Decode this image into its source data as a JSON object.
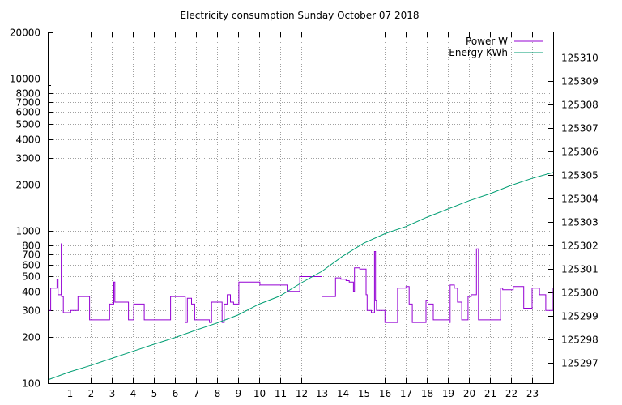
{
  "chart_data": {
    "type": "line",
    "title": "Electricity consumption Sunday October 07 2018",
    "xlabel": "",
    "ylabel": "",
    "y2label": "",
    "xlim": [
      0,
      24
    ],
    "ylim": [
      100,
      20000
    ],
    "y_scale": "log",
    "y2lim": [
      125296.15,
      125311.05
    ],
    "grid": true,
    "legend_position": "top-right",
    "x_ticks": [
      1,
      2,
      3,
      4,
      5,
      6,
      7,
      8,
      9,
      10,
      11,
      12,
      13,
      14,
      15,
      16,
      17,
      18,
      19,
      20,
      21,
      22,
      23
    ],
    "y_ticks": [
      100,
      200,
      300,
      400,
      500,
      600,
      700,
      800,
      1000,
      2000,
      3000,
      4000,
      5000,
      6000,
      7000,
      8000,
      10000,
      20000
    ],
    "y_tick_labels": [
      "100",
      "200",
      "300",
      "400",
      "500",
      "600",
      "700",
      "800",
      "1000",
      "2000",
      "3000",
      "4000",
      "5000",
      "6000",
      "7000",
      "8000",
      "10000",
      "20000"
    ],
    "y2_ticks": [
      125297,
      125298,
      125299,
      125300,
      125301,
      125302,
      125303,
      125304,
      125305,
      125306,
      125307,
      125308,
      125309,
      125310
    ],
    "series": [
      {
        "name": "Power W",
        "axis": "y",
        "color": "#9400d3",
        "step": true,
        "x": [
          0,
          0.1,
          0.12,
          0.4,
          0.45,
          0.6,
          0.62,
          0.65,
          0.7,
          0.75,
          0.85,
          0.9,
          1.05,
          1.4,
          1.45,
          1.95,
          2.0,
          2.85,
          2.9,
          3.1,
          3.15,
          3.7,
          3.8,
          4.05,
          4.45,
          4.55,
          5.35,
          5.45,
          5.6,
          5.8,
          6.5,
          6.6,
          6.75,
          6.8,
          6.95,
          7.0,
          7.15,
          7.45,
          7.55,
          7.65,
          7.75,
          7.85,
          8.1,
          8.25,
          8.35,
          8.5,
          8.65,
          8.8,
          9.05,
          9.8,
          10.05,
          11.15,
          11.35,
          11.95,
          12.2,
          12.25,
          12.3,
          13.0,
          13.25,
          13.65,
          13.9,
          14.15,
          14.3,
          14.45,
          14.5,
          14.5,
          14.55,
          14.8,
          15.1,
          15.15,
          15.35,
          15.5,
          15.55,
          15.6,
          15.9,
          16.0,
          16.1,
          16.2,
          16.6,
          17.0,
          17.15,
          17.3,
          17.5,
          17.65,
          17.95,
          18.05,
          18.2,
          18.3,
          18.7,
          19.05,
          19.1,
          19.3,
          19.45,
          19.65,
          19.95,
          20.1,
          20.35,
          20.45,
          20.75,
          21.0,
          21.5,
          21.6,
          22.1,
          22.35,
          22.6,
          22.75,
          23.0,
          23.1,
          23.35,
          23.65,
          23.85,
          24.0
        ],
        "values": [
          300,
          420,
          420,
          480,
          380,
          820,
          370,
          370,
          290,
          290,
          290,
          290,
          300,
          370,
          370,
          260,
          260,
          260,
          330,
          460,
          340,
          340,
          260,
          330,
          330,
          260,
          260,
          260,
          260,
          370,
          250,
          360,
          360,
          330,
          260,
          260,
          260,
          260,
          260,
          250,
          340,
          340,
          340,
          250,
          330,
          380,
          340,
          330,
          460,
          460,
          440,
          440,
          400,
          500,
          500,
          500,
          500,
          370,
          370,
          490,
          480,
          470,
          460,
          460,
          460,
          400,
          570,
          560,
          380,
          300,
          290,
          730,
          350,
          300,
          300,
          250,
          250,
          250,
          420,
          430,
          330,
          250,
          250,
          250,
          350,
          330,
          330,
          260,
          260,
          250,
          440,
          420,
          340,
          260,
          370,
          380,
          760,
          260,
          260,
          260,
          420,
          410,
          430,
          430,
          310,
          310,
          420,
          420,
          380,
          300,
          300,
          420
        ]
      },
      {
        "name": "Energy KWh",
        "axis": "y2",
        "color": "#009e73",
        "step": false,
        "x": [
          0,
          1,
          2,
          3,
          4,
          5,
          6,
          7,
          8,
          9,
          10,
          11,
          12,
          13,
          14,
          15,
          16,
          17,
          18,
          19,
          20,
          21,
          22,
          23,
          24
        ],
        "values": [
          125296.3,
          125296.63,
          125296.9,
          125297.2,
          125297.5,
          125297.8,
          125298.08,
          125298.4,
          125298.7,
          125299.04,
          125299.5,
          125299.85,
          125300.4,
          125300.9,
          125301.55,
          125302.1,
          125302.5,
          125302.8,
          125303.2,
          125303.55,
          125303.9,
          125304.2,
          125304.55,
          125304.85,
          125305.1
        ]
      }
    ]
  }
}
